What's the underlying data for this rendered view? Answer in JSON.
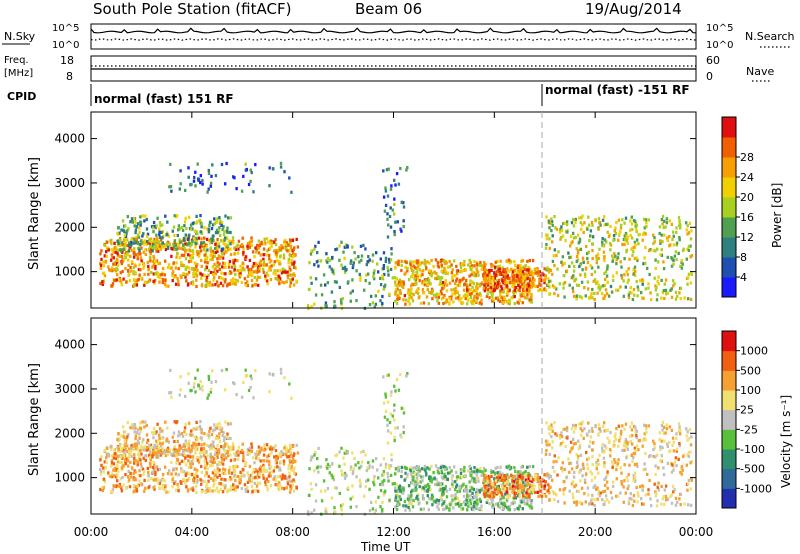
{
  "header": {
    "station": "South Pole Station (fitACF)",
    "beam": "Beam 06",
    "date": "19/Aug/2014"
  },
  "noise_panel": {
    "left_label": "N.Sky",
    "right_label": "N.Search",
    "left_ticks": [
      "10^5",
      "10^0"
    ],
    "right_ticks": [
      "10^5",
      "10^0"
    ]
  },
  "freq_panel": {
    "left_label_1": "Freq.",
    "left_label_2": "[MHz]",
    "right_label": "Nave",
    "left_ticks": [
      "18",
      "8"
    ],
    "right_ticks": [
      "60",
      "0"
    ]
  },
  "cpid": {
    "label": "CPID",
    "modes": [
      {
        "text": "normal (fast) 151 RF",
        "start_hour": 0
      },
      {
        "text": "normal (fast) -151 RF",
        "start_hour": 18
      }
    ]
  },
  "chart_data": [
    {
      "type": "heatmap",
      "name": "power",
      "ylabel": "Slant Range [km]",
      "y_ticks": [
        "1000",
        "2000",
        "3000",
        "4000"
      ],
      "ylim": [
        180,
        4600
      ],
      "x_ticks": [
        "00:00",
        "04:00",
        "08:00",
        "12:00",
        "16:00",
        "20:00",
        "00:00"
      ],
      "xlim_hours": [
        0,
        24
      ],
      "colorbar": {
        "label": "Power [dB]",
        "ticks": [
          "4",
          "8",
          "12",
          "16",
          "20",
          "24",
          "28"
        ],
        "colors": [
          "#1a1aff",
          "#1f4fb0",
          "#2f7f7f",
          "#4fa050",
          "#a8d020",
          "#f0d000",
          "#f5a000",
          "#f06000",
          "#e01010"
        ]
      }
    },
    {
      "type": "heatmap",
      "name": "velocity",
      "ylabel": "Slant Range [km]",
      "y_ticks": [
        "1000",
        "2000",
        "3000",
        "4000"
      ],
      "ylim": [
        180,
        4600
      ],
      "x_ticks": [
        "00:00",
        "04:00",
        "08:00",
        "12:00",
        "16:00",
        "20:00",
        "00:00"
      ],
      "xlim_hours": [
        0,
        24
      ],
      "xlabel": "Time UT",
      "colorbar": {
        "label": "Velocity [m s⁻¹]",
        "ticks": [
          "1000",
          "500",
          "100",
          "25",
          "-25",
          "-100",
          "-500",
          "-1000"
        ],
        "colors": [
          "#1f2fb0",
          "#2f6a9a",
          "#2f8f6f",
          "#5abf3a",
          "#c0c0c0",
          "#f0e070",
          "#f5a030",
          "#f06010",
          "#e01010"
        ]
      }
    }
  ]
}
